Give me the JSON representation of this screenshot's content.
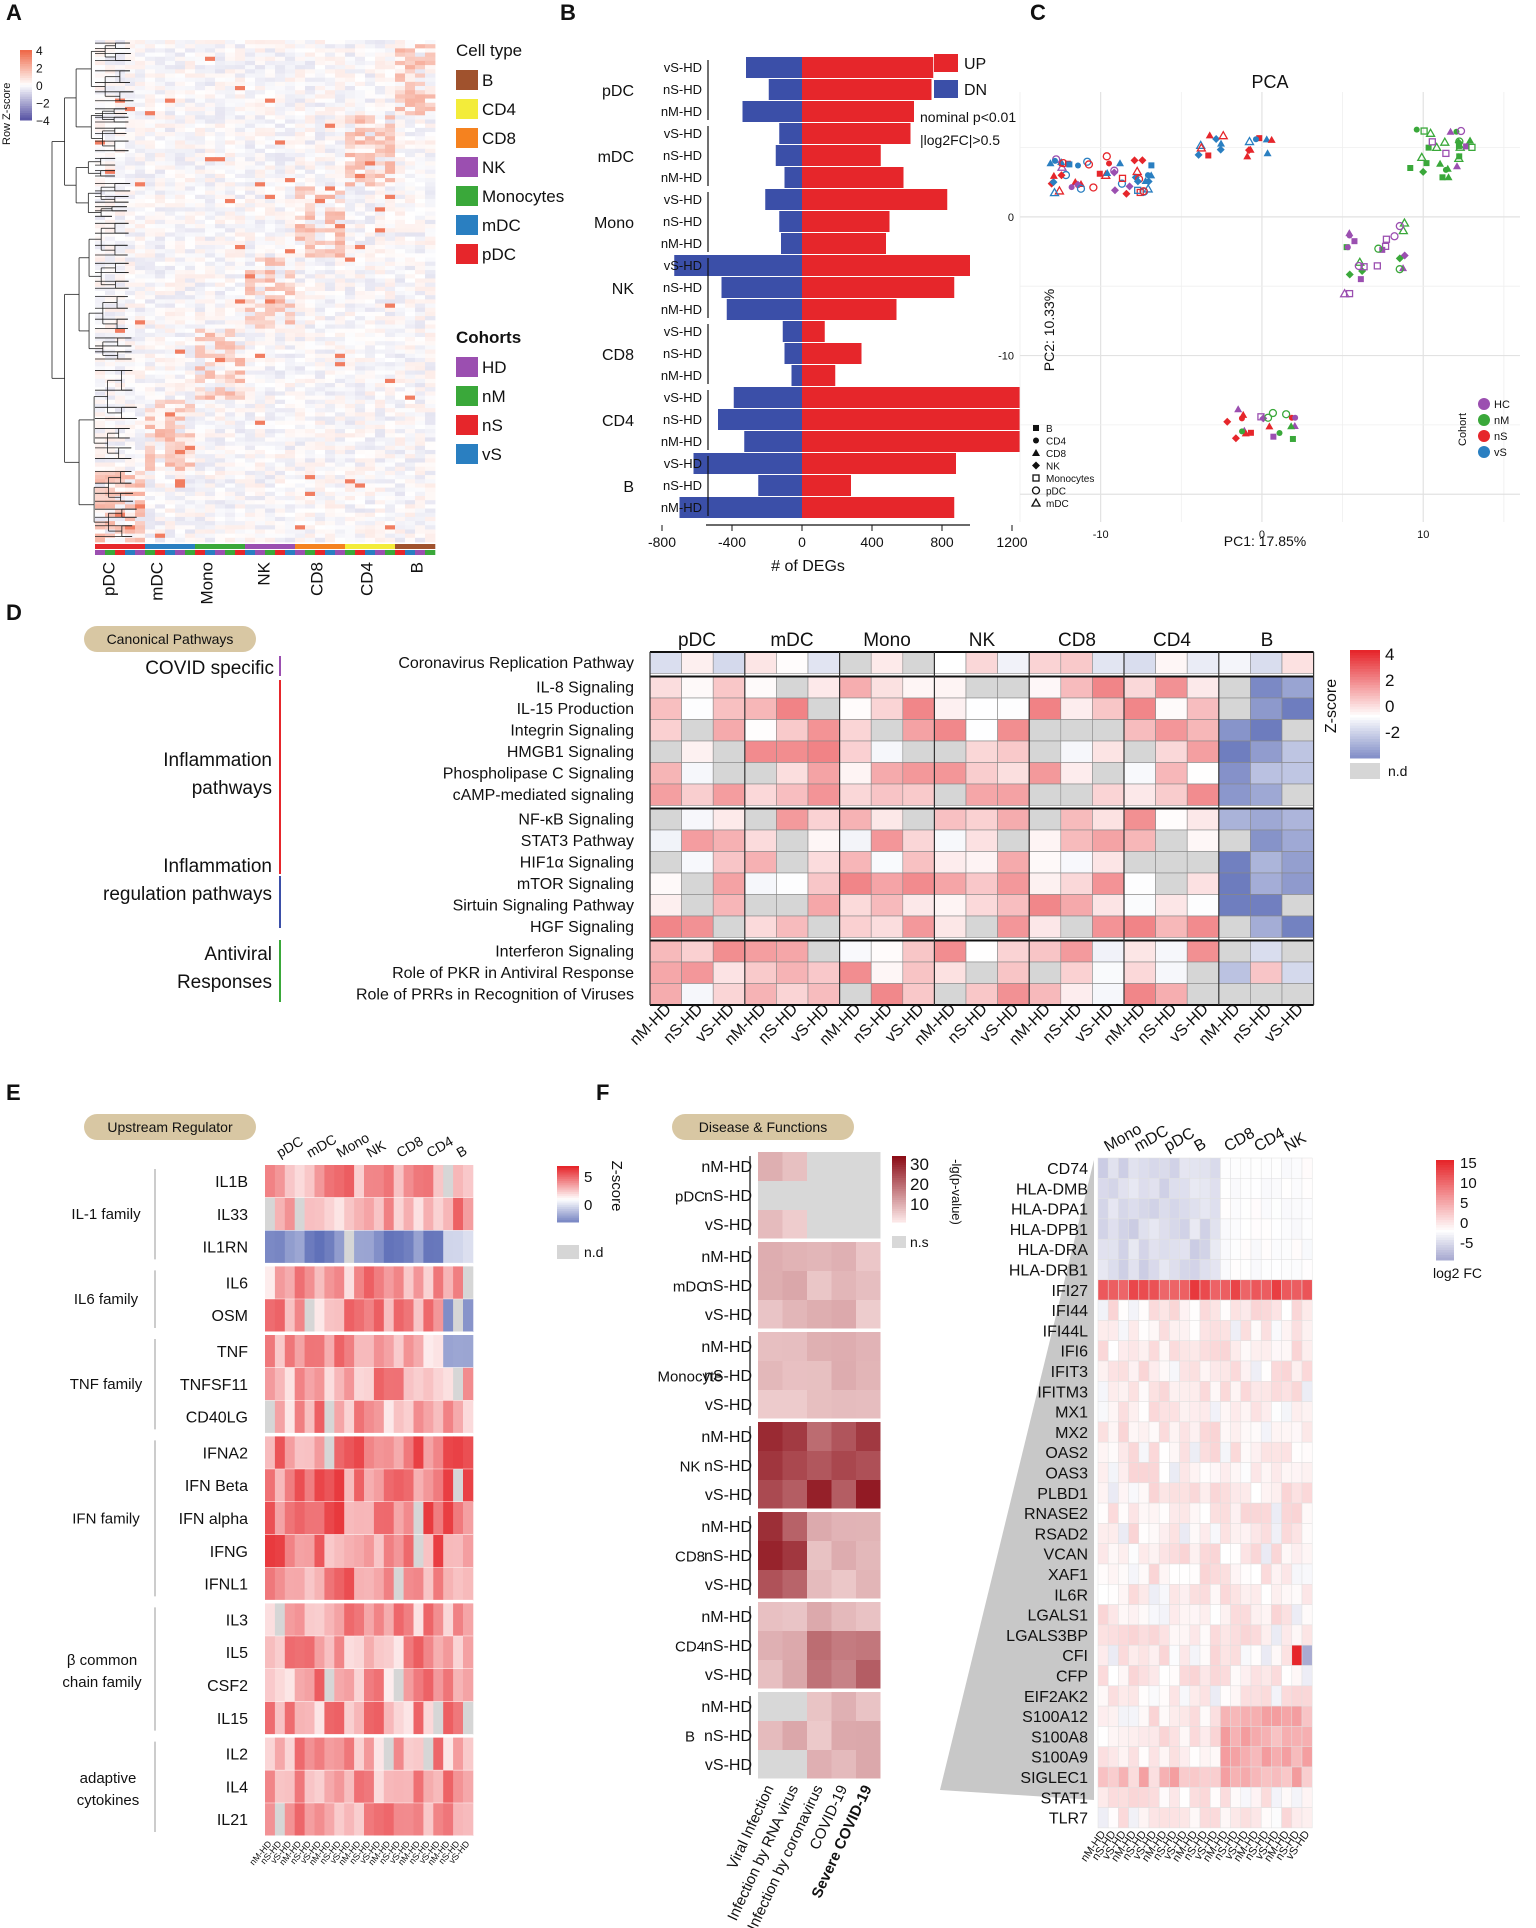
{
  "figure": {
    "description": "Multi-panel scientific figure"
  },
  "panels": [
    {
      "letter": "A"
    },
    {
      "letter": "B"
    },
    {
      "letter": "C"
    },
    {
      "letter": "D"
    },
    {
      "letter": "E"
    },
    {
      "letter": "F"
    }
  ],
  "panelA": {
    "scale_title": "Row Z-score",
    "scale_ticks": [
      "4",
      "2",
      "0",
      "−2",
      "−4"
    ],
    "cell_type_title": "Cell type",
    "cell_types": [
      {
        "label": "B",
        "color": "#a0522d"
      },
      {
        "label": "CD4",
        "color": "#f3ec3a"
      },
      {
        "label": "CD8",
        "color": "#f5821f"
      },
      {
        "label": "NK",
        "color": "#9b4fb0"
      },
      {
        "label": "Monocytes",
        "color": "#3aa83a"
      },
      {
        "label": "mDC",
        "color": "#2a7fc1"
      },
      {
        "label": "pDC",
        "color": "#e6262b"
      }
    ],
    "cohort_title": "Cohorts",
    "cohorts": [
      {
        "label": "HD",
        "color": "#9b4fb0"
      },
      {
        "label": "nM",
        "color": "#3aa83a"
      },
      {
        "label": "nS",
        "color": "#e6262b"
      },
      {
        "label": "vS",
        "color": "#2a7fc1"
      }
    ],
    "x_labels": [
      "pDC",
      "mDC",
      "Mono",
      "NK",
      "CD8",
      "CD4",
      "B"
    ]
  },
  "chart_data": [
    {
      "type": "bar",
      "title": "",
      "orientation": "horizontal",
      "categories": [
        "vS-HD",
        "nS-HD",
        "nM-HD",
        "vS-HD",
        "nS-HD",
        "nM-HD",
        "vS-HD",
        "nS-HD",
        "nM-HD",
        "vS-HD",
        "nS-HD",
        "nM-HD",
        "vS-HD",
        "nS-HD",
        "nM-HD",
        "vS-HD",
        "nS-HD",
        "nM-HD",
        "vS-HD",
        "nS-HD",
        "nM-HD"
      ],
      "groups": [
        "pDC",
        "mDC",
        "Mono",
        "NK",
        "CD8",
        "CD4",
        "B"
      ],
      "series": [
        {
          "name": "UP",
          "color": "#e6262b",
          "values": [
            750,
            740,
            640,
            620,
            450,
            580,
            830,
            500,
            480,
            960,
            870,
            540,
            130,
            340,
            190,
            1330,
            1300,
            1390,
            880,
            280,
            870
          ]
        },
        {
          "name": "DN",
          "color": "#3b4fa8",
          "values": [
            -320,
            -190,
            -340,
            -130,
            -150,
            -100,
            -210,
            -130,
            -120,
            -730,
            -460,
            -430,
            -110,
            -100,
            -60,
            -390,
            -480,
            -330,
            -620,
            -250,
            -700
          ]
        }
      ],
      "xlabel": "# of DEGs",
      "xlim": [
        -800,
        1300
      ],
      "x_ticks": [
        "-800",
        "-400",
        "0",
        "400",
        "800",
        "1200"
      ],
      "legend": [
        "UP",
        "DN"
      ],
      "annotations": [
        "nominal p<0.01",
        "|log2FC|>0.5"
      ]
    },
    {
      "type": "scatter",
      "title": "PCA",
      "xlabel": "PC1: 17.85%",
      "ylabel": "PC2: 10.33%",
      "x_ticks": [
        "-10",
        "0",
        "10"
      ],
      "y_ticks": [
        "0",
        "-10"
      ],
      "xlim": [
        -15,
        16
      ],
      "ylim": [
        -22,
        9
      ],
      "shape_legend": [
        "B",
        "CD4",
        "CD8",
        "NK",
        "Monocytes",
        "pDC",
        "mDC"
      ],
      "color_legend_title": "Cohort",
      "color_legend": [
        {
          "label": "HC",
          "color": "#9b4fb0"
        },
        {
          "label": "nM",
          "color": "#3aa83a"
        },
        {
          "label": "nS",
          "color": "#e6262b"
        },
        {
          "label": "vS",
          "color": "#2a7fc1"
        }
      ]
    }
  ],
  "panelD": {
    "badge": "Canonical Pathways",
    "groups": [
      "COVID specific",
      "Inflammation pathways",
      "Inflammation regulation pathways",
      "Antiviral Responses"
    ],
    "rows": [
      "Coronavirus Replication Pathway",
      "IL-8 Signaling",
      "IL-15 Production",
      "Integrin Signaling",
      "HMGB1 Signaling",
      "Phospholipase C Signaling",
      "cAMP-mediated signaling",
      "NF-κB Signaling",
      "STAT3 Pathway",
      "HIF1α Signaling",
      "mTOR Signaling",
      "Sirtuin Signaling Pathway",
      "HGF Signaling",
      "Interferon Signaling",
      "Role of PKR in Antiviral Response",
      "Role of PRRs in Recognition of Viruses"
    ],
    "cell_types": [
      "pDC",
      "mDC",
      "Mono",
      "NK",
      "CD8",
      "CD4",
      "B"
    ],
    "comparisons": [
      "nM-HD",
      "nS-HD",
      "vS-HD"
    ],
    "legend_title": "Z-score",
    "legend_ticks": [
      "4",
      "2",
      "0",
      "-2"
    ],
    "legend_nd": "n.d"
  },
  "panelE": {
    "badge": "Upstream Regulator",
    "families": [
      "IL-1 family",
      "IL6 family",
      "TNF family",
      "IFN family",
      "β common chain family",
      "adaptive cytokines"
    ],
    "rows": [
      "IL1B",
      "IL33",
      "IL1RN",
      "IL6",
      "OSM",
      "TNF",
      "TNFSF11",
      "CD40LG",
      "IFNA2",
      "IFN Beta",
      "IFN alpha",
      "IFNG",
      "IFNL1",
      "IL3",
      "IL5",
      "CSF2",
      "IL15",
      "IL2",
      "IL4",
      "IL21"
    ],
    "cell_types": [
      "pDC",
      "mDC",
      "Mono",
      "NK",
      "CD8",
      "CD4",
      "B"
    ],
    "comparisons": [
      "nM-HD",
      "nS-HD",
      "vS-HD"
    ],
    "legend_title": "Z-score",
    "legend_ticks": [
      "5",
      "0"
    ],
    "legend_nd": "n.d"
  },
  "panelF": {
    "badge": "Disease & Functions",
    "cell_types": [
      "pDC",
      "mDC",
      "Monocyte",
      "NK",
      "CD8",
      "CD4",
      "B"
    ],
    "comparisons": [
      "nM-HD",
      "nS-HD",
      "vS-HD"
    ],
    "columns": [
      "Viral Infection",
      "Infection by RNA virus",
      "Infection by coronavirus",
      "COVID-19",
      "Severe COVID-19"
    ],
    "legend_title": "-lg(p-value)",
    "legend_ticks": [
      "30",
      "20",
      "10"
    ],
    "legend_ns": "n.s",
    "genes": [
      "CD74",
      "HLA-DMB",
      "HLA-DPA1",
      "HLA-DPB1",
      "HLA-DRA",
      "HLA-DRB1",
      "IFI27",
      "IFI44",
      "IFI44L",
      "IFI6",
      "IFIT3",
      "IFITM3",
      "MX1",
      "MX2",
      "OAS2",
      "OAS3",
      "PLBD1",
      "RNASE2",
      "RSAD2",
      "VCAN",
      "XAF1",
      "IL6R",
      "LGALS1",
      "LGALS3BP",
      "CFI",
      "CFP",
      "EIF2AK2",
      "S100A12",
      "S100A8",
      "S100A9",
      "SIGLEC1",
      "STAT1",
      "TLR7"
    ],
    "gene_cell_types": [
      "Mono",
      "mDC",
      "pDC",
      "B",
      "CD8",
      "CD4",
      "NK"
    ],
    "gene_legend_title": "log2 FC",
    "gene_legend_ticks": [
      "15",
      "10",
      "5",
      "0",
      "-5"
    ]
  }
}
